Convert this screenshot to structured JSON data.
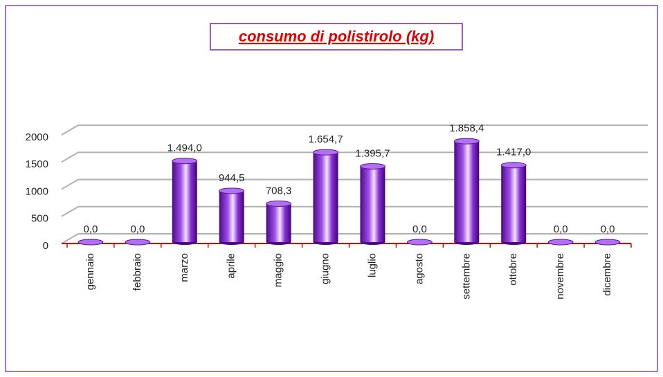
{
  "chart_data": {
    "type": "bar",
    "title": "consumo di polistirolo (kg)",
    "categories": [
      "gennaio",
      "febbraio",
      "marzo",
      "aprile",
      "maggio",
      "giugno",
      "luglio",
      "agosto",
      "settembre",
      "ottobre",
      "novembre",
      "dicembre"
    ],
    "values": [
      0,
      0,
      1494.0,
      944.5,
      708.3,
      1654.7,
      1395.7,
      0,
      1858.4,
      1417.0,
      0,
      0
    ],
    "value_labels": [
      "0,0",
      "0,0",
      "1.494,0",
      "944,5",
      "708,3",
      "1.654,7",
      "1.395,7",
      "0,0",
      "1.858,4",
      "1.417,0",
      "0,0",
      "0,0"
    ],
    "color": "#7a1fc4",
    "ylim": [
      0,
      2000
    ],
    "yticks": [
      0,
      500,
      1000,
      1500,
      2000
    ],
    "grid": true
  }
}
